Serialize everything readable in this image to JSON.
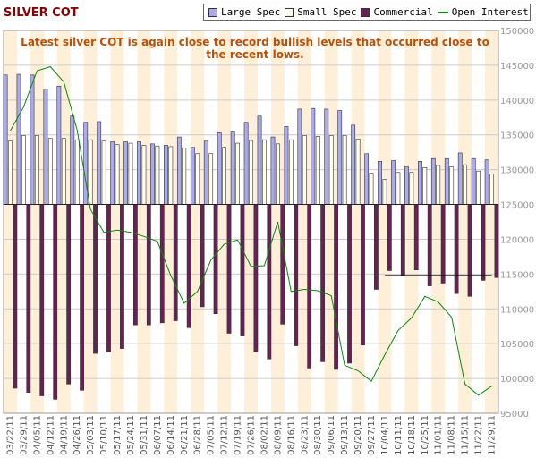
{
  "chart_data": {
    "type": "bar",
    "title": "SILVER COT",
    "annotation": "Latest silver COT is again close to record bullish levels that occurred close to the recent lows.",
    "legend_position": "top-right",
    "colors": {
      "large_spec": "#aaaaee",
      "small_spec": "#ffffee",
      "commercial": "#662255",
      "open_interest": "#0a8a0a",
      "band": "#fdefd8",
      "grid": "#cccccc",
      "hline": "#000000"
    },
    "categories": [
      "03/22/11",
      "03/29/11",
      "04/05/11",
      "04/12/11",
      "04/19/11",
      "04/26/11",
      "05/03/11",
      "05/10/11",
      "05/17/11",
      "05/24/11",
      "05/31/11",
      "06/07/11",
      "06/14/11",
      "06/21/11",
      "06/28/11",
      "07/05/11",
      "07/12/11",
      "07/19/11",
      "07/26/11",
      "08/02/11",
      "08/09/11",
      "08/16/11",
      "08/23/11",
      "08/30/11",
      "09/06/11",
      "09/13/11",
      "09/20/11",
      "09/27/11",
      "10/04/11",
      "10/11/11",
      "10/18/11",
      "10/25/11",
      "11/01/11",
      "11/08/11",
      "11/15/11",
      "11/22/11",
      "11/29/11"
    ],
    "x_tick_labels": [
      "03/22/11",
      "03/29/11",
      "04/05/11",
      "04/12/11",
      "04/19/11",
      "04/26/11",
      "05/03/11",
      "05/10/11",
      "05/17/11",
      "05/24/11",
      "05/31/11",
      "06/07/11",
      "06/14/11",
      "06/21/11",
      "06/28/11",
      "07/05/11",
      "07/12/11",
      "07/19/11",
      "07/26/11",
      "08/02/11",
      "08/09/11",
      "08/16/11",
      "08/23/11",
      "08/30/11",
      "09/06/11",
      "09/13/11",
      "09/20/11",
      "09/27/11",
      "10/04/11",
      "10/11/11",
      "10/18/11",
      "10/25/11",
      "11/01/11",
      "11/08/11",
      "11/15/11",
      "11/22/11",
      "11/29/11"
    ],
    "ylim": [
      95000,
      150000
    ],
    "baseline": 125000,
    "y_ticks": [
      95000,
      100000,
      105000,
      110000,
      115000,
      120000,
      125000,
      130000,
      135000,
      140000,
      145000,
      150000
    ],
    "y_tick_labels": [
      "95000",
      "100000",
      "105000",
      "110000",
      "115000",
      "120000",
      "125000",
      "130000",
      "135000",
      "140000",
      "145000",
      "150000"
    ],
    "grid": true,
    "series": [
      {
        "name": "Large Spec",
        "values": [
          143600,
          143700,
          143600,
          141600,
          142000,
          137700,
          136800,
          136900,
          134000,
          134000,
          134000,
          133700,
          133500,
          134700,
          133200,
          134100,
          135300,
          135400,
          136800,
          137700,
          134700,
          136200,
          138700,
          138800,
          138700,
          138500,
          136400,
          132300,
          131200,
          131300,
          130400,
          131200,
          131600,
          131600,
          132400,
          131600,
          131400
        ]
      },
      {
        "name": "Small Spec",
        "values": [
          134100,
          134900,
          134900,
          134500,
          134500,
          134300,
          134300,
          134100,
          133600,
          133800,
          133500,
          133400,
          133300,
          133100,
          132300,
          132300,
          133200,
          133800,
          134200,
          134300,
          133700,
          134300,
          134900,
          134800,
          134900,
          134900,
          134400,
          129500,
          128600,
          129600,
          129600,
          130300,
          130600,
          130400,
          130700,
          129800,
          129400
        ]
      },
      {
        "name": "Commercial",
        "values": [
          98600,
          98000,
          97500,
          97000,
          99200,
          98300,
          103600,
          103800,
          104300,
          107700,
          107700,
          108000,
          108300,
          107300,
          110300,
          109300,
          106500,
          106100,
          103900,
          102800,
          107800,
          104700,
          101500,
          102400,
          101300,
          102200,
          104800,
          112800,
          115500,
          114800,
          115600,
          113300,
          113700,
          112200,
          111800,
          114100,
          114500
        ]
      },
      {
        "name": "Open Interest",
        "values": [
          135600,
          139000,
          144200,
          144800,
          142600,
          135700,
          124300,
          121000,
          121300,
          121000,
          120400,
          119700,
          114800,
          110800,
          112500,
          117000,
          119300,
          119900,
          116100,
          116200,
          122500,
          112500,
          112800,
          112600,
          111900,
          101900,
          101100,
          99600,
          103400,
          106900,
          108700,
          111800,
          111000,
          108800,
          99200,
          97600,
          98900
        ]
      }
    ],
    "reference_line": {
      "y": 114800,
      "x_start": "10/04/11",
      "x_end": "11/29/11"
    }
  }
}
